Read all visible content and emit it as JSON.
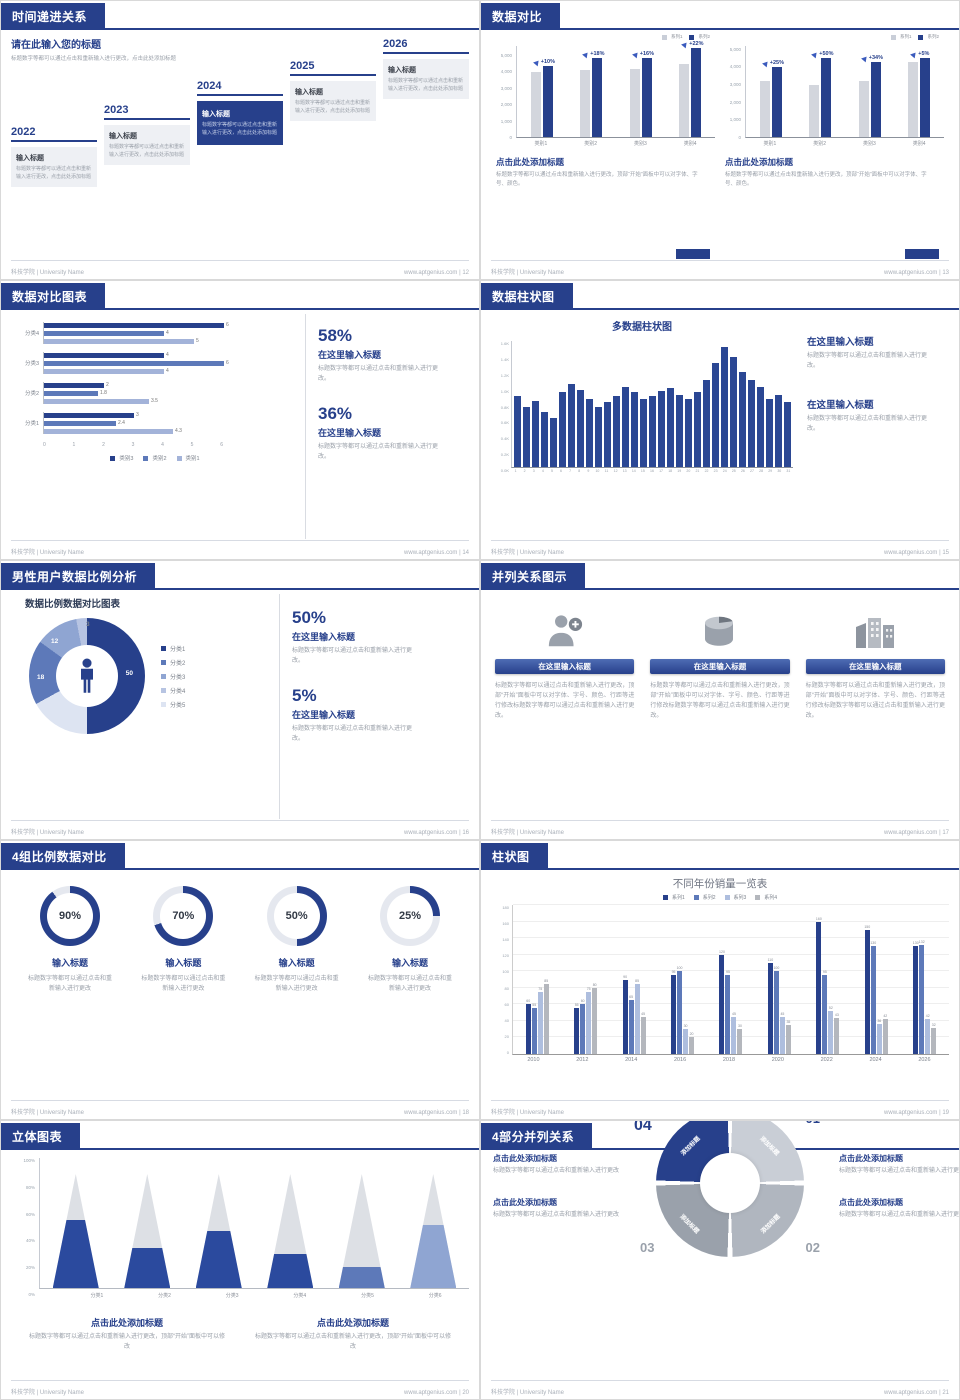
{
  "footer": {
    "left": "科技学院 | University Name",
    "site": "www.aptgenius.com"
  },
  "palette": {
    "primary": "#27408b",
    "mid": "#5d79b9",
    "light": "#8fa5d2",
    "pale": "#b7c4e2",
    "gray_bar": "#d3d6dd"
  },
  "slides": [
    {
      "title": "时间递进关系",
      "page": "12",
      "heading": "请在此输入您的标题",
      "intro": "标题数字等都可以通过点击和重新输入进行更改，点击此处添加标题",
      "timeline": [
        {
          "year": "2022",
          "box_title": "输入标题",
          "box_text": "标题数字等都可以通过点击和重新输入进行更改，点击此处添加标题"
        },
        {
          "year": "2023",
          "box_title": "输入标题",
          "box_text": "标题数字等都可以通过点击和重新输入进行更改，点击此处添加标题"
        },
        {
          "year": "2024",
          "box_title": "输入标题",
          "box_text": "标题数字等都可以通过点击和重新输入进行更改，点击此处添加标题"
        },
        {
          "year": "2025",
          "box_title": "输入标题",
          "box_text": "标题数字等都可以通过点击和重新输入进行更改，点击此处添加标题"
        },
        {
          "year": "2026",
          "box_title": "输入标题",
          "box_text": "标题数字等都可以通过点击和重新输入进行更改，点击此处添加标题"
        }
      ]
    },
    {
      "title": "数据对比",
      "page": "13",
      "panels": [
        {
          "legend": [
            "系列1",
            "系列2"
          ],
          "yticks": [
            "5,000",
            "4,000",
            "3,000",
            "2,000",
            "1,000",
            "0"
          ],
          "axis_max": 5600,
          "categories": [
            "类别1",
            "类别2",
            "类别3",
            "类别4"
          ],
          "base": [
            4000,
            4100,
            4200,
            4500
          ],
          "grow": [
            4400,
            4838,
            4872,
            5490
          ],
          "labels": [
            "+10%",
            "+18%",
            "+16%",
            "+22%"
          ],
          "caption": "点击此处添加标题",
          "body": "标题数字等都可以通过点击和重新输入进行更改，顶部“开始”面板中可以对字体、字号、颜色。"
        },
        {
          "legend": [
            "系列1",
            "系列2"
          ],
          "yticks": [
            "5,000",
            "4,000",
            "3,000",
            "2,000",
            "1,000",
            "0"
          ],
          "axis_max": 5200,
          "categories": [
            "类别1",
            "类别2",
            "类别3",
            "类别4"
          ],
          "base": [
            3200,
            3000,
            3200,
            4300
          ],
          "grow": [
            4000,
            4500,
            4288,
            4515
          ],
          "labels": [
            "+25%",
            "+50%",
            "+34%",
            "+5%"
          ],
          "caption": "点击此处添加标题",
          "body": "标题数字等都可以通过点击和重新输入进行更改，顶部“开始”面板中可以对字体、字号、颜色。"
        }
      ]
    },
    {
      "title": "数据对比图表",
      "page": "14",
      "hbar": {
        "categories": [
          "分类4",
          "分类3",
          "分类2",
          "分类1"
        ],
        "series": [
          [
            6,
            4,
            5
          ],
          [
            4,
            6,
            4
          ],
          [
            2,
            1.8,
            3.5
          ],
          [
            3,
            2.4,
            4.3
          ]
        ],
        "colors": [
          "#27408b",
          "#5d79b9",
          "#a3b3d9"
        ],
        "xticks": [
          "0",
          "1",
          "2",
          "3",
          "4",
          "5",
          "6"
        ],
        "max": 6,
        "legend": [
          {
            "label": "类别3",
            "color": "#27408b"
          },
          {
            "label": "类别2",
            "color": "#5d79b9"
          },
          {
            "label": "类别1",
            "color": "#a3b3d9"
          }
        ]
      },
      "stats": [
        {
          "pct": "58%",
          "title": "在这里输入标题",
          "body": "标题数字等都可以通过点击和重新输入进行更改。"
        },
        {
          "pct": "36%",
          "title": "在这里输入标题",
          "body": "标题数字等都可以通过点击和重新输入进行更改。"
        }
      ]
    },
    {
      "title": "数据柱状图",
      "page": "15",
      "chart": {
        "title": "多数据柱状图",
        "yticks": [
          "1.6K",
          "1.4K",
          "1.2K",
          "1.0K",
          "0.8K",
          "0.6K",
          "0.4K",
          "0.2K",
          "0.0K"
        ],
        "max": 1600,
        "values": [
          900,
          760,
          840,
          700,
          620,
          950,
          1060,
          980,
          860,
          760,
          820,
          900,
          1010,
          950,
          860,
          900,
          960,
          1000,
          920,
          860,
          950,
          1100,
          1320,
          1520,
          1400,
          1210,
          1100,
          1010,
          860,
          910,
          820
        ],
        "xlabels": [
          "1",
          "2",
          "3",
          "4",
          "5",
          "6",
          "7",
          "8",
          "9",
          "10",
          "11",
          "12",
          "13",
          "14",
          "15",
          "16",
          "17",
          "18",
          "19",
          "20",
          "21",
          "22",
          "23",
          "24",
          "25",
          "26",
          "27",
          "28",
          "29",
          "30",
          "31"
        ]
      },
      "notes": [
        {
          "title": "在这里输入标题",
          "body": "标题数字等都可以通过点击和重新输入进行更改。"
        },
        {
          "title": "在这里输入标题",
          "body": "标题数字等都可以通过点击和重新输入进行更改。"
        }
      ]
    },
    {
      "title": "男性用户数据比例分析",
      "page": "16",
      "chart_title": "数据比例数据对比图表",
      "donut": {
        "values": [
          50,
          17,
          18,
          12,
          3
        ],
        "colors": [
          "#27408b",
          "#dde4f2",
          "#5d79b9",
          "#8fa5d2",
          "#b7c4e2"
        ],
        "labels": [
          "50",
          "18",
          "12",
          "3"
        ]
      },
      "legend": [
        {
          "label": "分类1",
          "color": "#27408b"
        },
        {
          "label": "分类2",
          "color": "#5d79b9"
        },
        {
          "label": "分类3",
          "color": "#8fa5d2"
        },
        {
          "label": "分类4",
          "color": "#b7c4e2"
        },
        {
          "label": "分类5",
          "color": "#dde4f2"
        }
      ],
      "stats": [
        {
          "pct": "50%",
          "title": "在这里输入标题",
          "body": "标题数字等都可以通过点击和重新输入进行更改。"
        },
        {
          "pct": "5%",
          "title": "在这里输入标题",
          "body": "标题数字等都可以通过点击和重新输入进行更改。"
        }
      ]
    },
    {
      "title": "并列关系图示",
      "page": "17",
      "columns": [
        {
          "icon": "medical-person-icon",
          "button": "在这里输入标题",
          "body": "标题数字等都可以通过点击和重新输入进行更改，顶部“开始”面板中可以对字体、字号、颜色、行距等进行修改标题数字等都可以通过点击和重新输入进行更改。"
        },
        {
          "icon": "cylinder-chart-icon",
          "button": "在这里输入标题",
          "body": "标题数字等都可以通过点击和重新输入进行更改，顶部“开始”面板中可以对字体、字号、颜色、行距等进行修改标题数字等都可以通过点击和重新输入进行更改。"
        },
        {
          "icon": "building-icon",
          "button": "在这里输入标题",
          "body": "标题数字等都可以通过点击和重新输入进行更改，顶部“开始”面板中可以对字体、字号、颜色、行距等进行修改标题数字等都可以通过点击和重新输入进行更改。"
        }
      ]
    },
    {
      "title": "4组比例数据对比",
      "page": "18",
      "rings": [
        {
          "pct": 90,
          "label": "90%",
          "title": "输入标题",
          "body": "标题数字等都可以通过点击和重新输入进行更改"
        },
        {
          "pct": 70,
          "label": "70%",
          "title": "输入标题",
          "body": "标题数字等都可以通过点击和重新输入进行更改"
        },
        {
          "pct": 50,
          "label": "50%",
          "title": "输入标题",
          "body": "标题数字等都可以通过点击和重新输入进行更改"
        },
        {
          "pct": 25,
          "label": "25%",
          "title": "输入标题",
          "body": "标题数字等都可以通过点击和重新输入进行更改"
        }
      ]
    },
    {
      "title": "柱状图",
      "page": "19",
      "chart": {
        "title": "不同年份销量一览表",
        "legend": [
          {
            "label": "系列1",
            "color": "#27408b"
          },
          {
            "label": "系列2",
            "color": "#5d79b9"
          },
          {
            "label": "系列3",
            "color": "#aebede"
          },
          {
            "label": "系列4",
            "color": "#b4b7bd"
          }
        ],
        "colors": [
          "#27408b",
          "#5d79b9",
          "#aebede",
          "#b4b7bd"
        ],
        "categories": [
          "2010",
          "2012",
          "2014",
          "2016",
          "2018",
          "2020",
          "2022",
          "2024",
          "2026"
        ],
        "series": [
          {
            "name": "系列1",
            "values": [
              60,
              55,
              90,
              95,
              120,
              110,
              160,
              150,
              130
            ]
          },
          {
            "name": "系列2",
            "values": [
              55,
              60,
              65,
              100,
              95,
              100,
              95,
              130,
              132
            ]
          },
          {
            "name": "系列3",
            "values": [
              75,
              75,
              85,
              30,
              45,
              45,
              52,
              36,
              42
            ]
          },
          {
            "name": "系列4",
            "values": [
              85,
              80,
              45,
              20,
              30,
              35,
              43,
              42,
              32
            ]
          }
        ],
        "yticks": [
          "180",
          "160",
          "140",
          "120",
          "100",
          "80",
          "60",
          "40",
          "20",
          "0"
        ],
        "max": 180
      }
    },
    {
      "title": "立体图表",
      "page": "20",
      "cones": {
        "categories": [
          "分类1",
          "分类2",
          "分类3",
          "分类4",
          "分类5",
          "分类6"
        ],
        "fills": [
          60,
          35,
          50,
          30,
          18,
          55
        ],
        "colors": [
          "#2b4a9e",
          "#2b4a9e",
          "#2b4a9e",
          "#2b4a9e",
          "#5d79b9",
          "#8fa5d2"
        ],
        "yticks": [
          "100%",
          "80%",
          "60%",
          "40%",
          "20%",
          "0%"
        ]
      },
      "notes": [
        {
          "title": "点击此处添加标题",
          "body": "标题数字等都可以通过点击和重新输入进行更改，顶部“开始”面板中可以修改"
        },
        {
          "title": "点击此处添加标题",
          "body": "标题数字等都可以通过点击和重新输入进行更改，顶部“开始”面板中可以修改"
        }
      ]
    },
    {
      "title": "4部分并列关系",
      "page": "21",
      "wheel": {
        "segments": [
          "添加标题",
          "添加标题",
          "添加标题",
          "添加标题"
        ],
        "numbers": [
          "01",
          "02",
          "03",
          "04"
        ],
        "colors": [
          "#c9ced6",
          "#b0b6bf",
          "#9aa1ab",
          "#27408b"
        ]
      },
      "notes": [
        {
          "title": "点击此处添加标题",
          "body": "标题数字等都可以通过点击和重新输入进行更改"
        },
        {
          "title": "点击此处添加标题",
          "body": "标题数字等都可以通过点击和重新输入进行更改"
        },
        {
          "title": "点击此处添加标题",
          "body": "标题数字等都可以通过点击和重新输入进行更改"
        },
        {
          "title": "点击此处添加标题",
          "body": "标题数字等都可以通过点击和重新输入进行更改"
        }
      ]
    }
  ]
}
